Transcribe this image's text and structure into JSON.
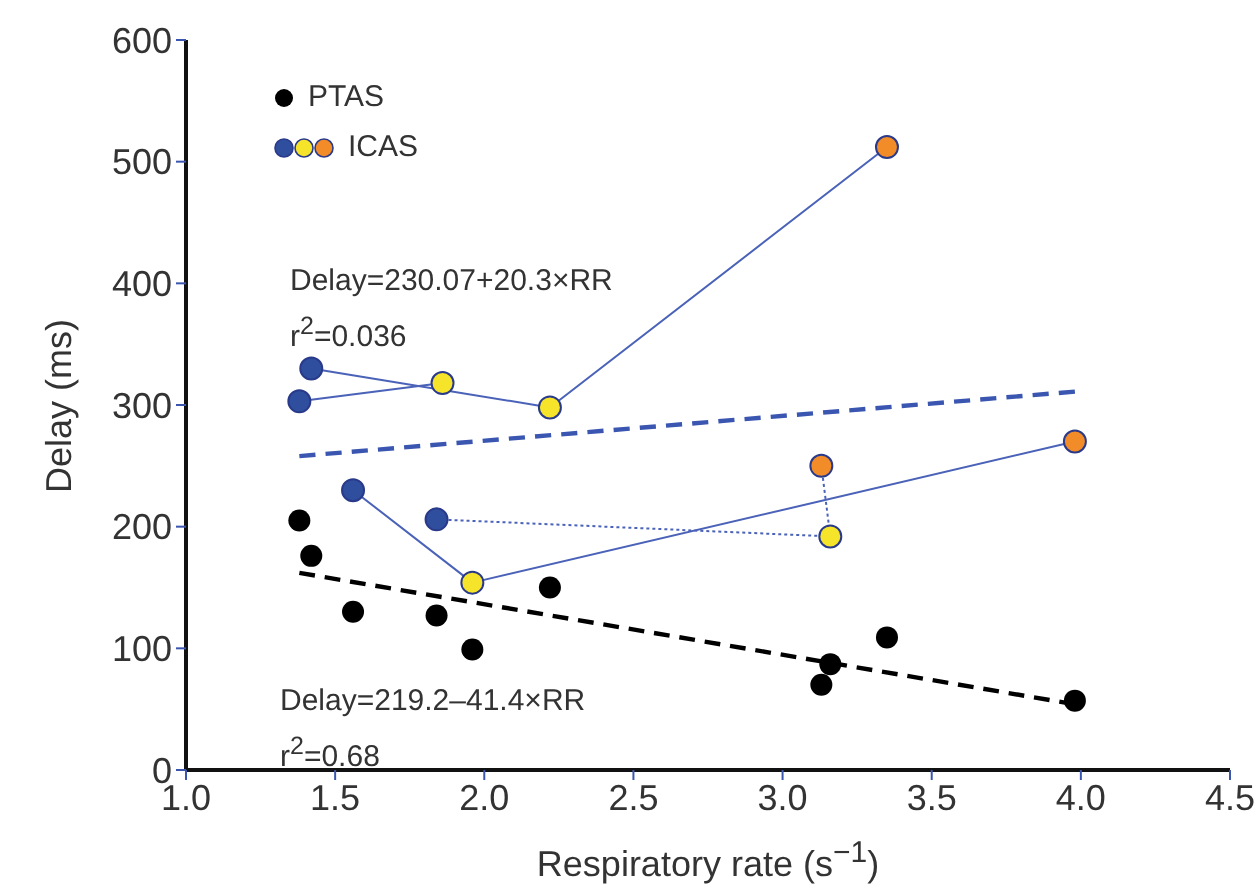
{
  "chart_data": {
    "type": "scatter",
    "xlabel": "Respiratory rate (s$^{−1}$)",
    "ylabel": "Delay (ms)",
    "xlim": [
      1.0,
      4.5
    ],
    "xticks": [
      {
        "value": 1,
        "label": "1.0"
      },
      {
        "value": 1.5,
        "label": "1.5"
      },
      {
        "value": 2,
        "label": "2.0"
      },
      {
        "value": 2.5,
        "label": "2.5"
      },
      {
        "value": 3,
        "label": "3.0"
      },
      {
        "value": 3.5,
        "label": "3.5"
      },
      {
        "value": 4,
        "label": "4.0"
      },
      {
        "value": 4.5,
        "label": "4.5"
      }
    ],
    "ylim": [
      0,
      600
    ],
    "yticks": [
      0,
      100,
      200,
      300,
      400,
      500,
      600
    ],
    "grid": false,
    "legend": "top left",
    "annotations": [
      "Delay=230.07+20.3×RR",
      "r$^{2}$=0.036",
      "Delay=219.2–41.4×RR",
      "r$^{2}$=0.68"
    ],
    "series": [
      {
        "name": "PTAS",
        "type": "scatter",
        "marker": "circle",
        "color": "#000000",
        "x": [
          1.38,
          1.42,
          1.56,
          1.84,
          1.96,
          2.22,
          3.13,
          3.16,
          3.35,
          3.98
        ],
        "values": [
          205,
          176,
          130,
          127,
          99,
          150,
          70,
          87,
          109,
          57
        ]
      },
      {
        "name": "ICAS",
        "type": "line",
        "marker": "circle",
        "line_style": "solid",
        "color": "#4a62b8",
        "colors": [
          "#2f4f9e",
          "#f5e42a",
          "#f28c28"
        ],
        "x": [
          1.42,
          2.22,
          3.35
        ],
        "values": [
          330,
          298,
          512
        ]
      },
      {
        "type": "line",
        "marker": "circle",
        "line_style": "solid",
        "color": "#4a62b8",
        "colors": [
          "#2f4f9e",
          "#f5e42a"
        ],
        "x": [
          1.38,
          1.86
        ],
        "values": [
          303,
          318
        ]
      },
      {
        "type": "line",
        "marker": "circle",
        "line_style": "solid",
        "color": "#4a62b8",
        "colors": [
          "#2f4f9e",
          "#f5e42a",
          "#f28c28"
        ],
        "x": [
          1.56,
          1.96,
          3.98
        ],
        "values": [
          230,
          154,
          270
        ]
      },
      {
        "type": "line",
        "marker": "circle",
        "line_style": "dotted",
        "color": "#4a62b8",
        "colors": [
          "#2f4f9e",
          "#f5e42a",
          "#f28c28"
        ],
        "x": [
          1.84,
          3.16,
          3.13
        ],
        "values": [
          206,
          192,
          250
        ]
      },
      {
        "type": "line",
        "marker": "none",
        "line_style": "dashed",
        "color": "#3a56b0",
        "x": [
          1.38,
          3.98
        ],
        "values": [
          258,
          311
        ]
      },
      {
        "type": "line",
        "marker": "none",
        "line_style": "dashed",
        "color": "#000000",
        "x": [
          1.38,
          3.98
        ],
        "values": [
          162,
          54
        ]
      }
    ]
  }
}
